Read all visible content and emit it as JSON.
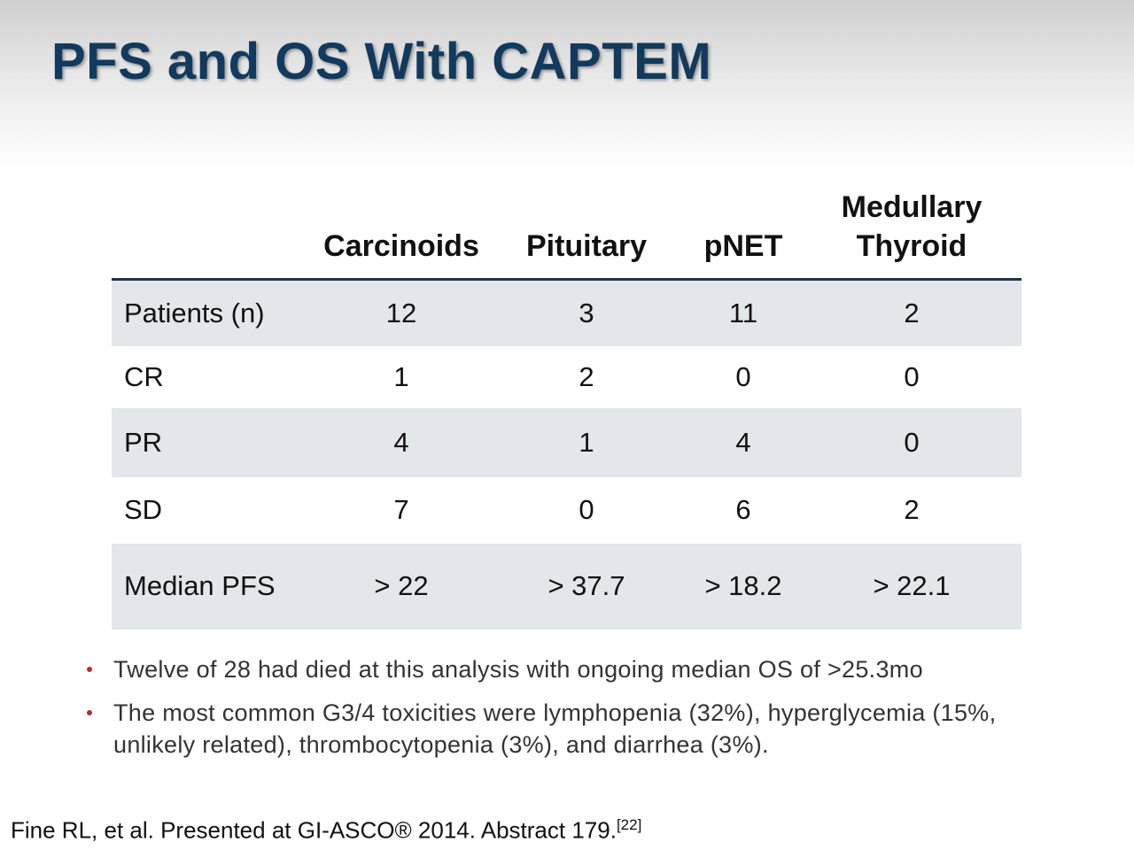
{
  "header": {
    "title": "PFS and OS With CAPTEM"
  },
  "table": {
    "columns": [
      "",
      "Carcinoids",
      "Pituitary",
      "pNET",
      "Medullary Thyroid"
    ],
    "rows": [
      [
        "Patients (n)",
        "12",
        "3",
        "11",
        "2"
      ],
      [
        "CR",
        "1",
        "2",
        "0",
        "0"
      ],
      [
        "PR",
        "4",
        "1",
        "4",
        "0"
      ],
      [
        "SD",
        "7",
        "0",
        "6",
        "2"
      ],
      [
        "Median PFS",
        "> 22",
        "> 37.7",
        "> 18.2",
        "> 22.1"
      ]
    ]
  },
  "bullets": [
    "Twelve of 28 had died at this analysis with ongoing median OS of >25.3mo",
    "The most common G3/4 toxicities were lymphopenia (32%), hyperglycemia (15%, unlikely related), thrombocytopenia (3%), and diarrhea (3%)."
  ],
  "footnote": {
    "text": "Fine RL, et al. Presented at GI-ASCO® 2014. Abstract 179.",
    "reference": "[22]"
  }
}
